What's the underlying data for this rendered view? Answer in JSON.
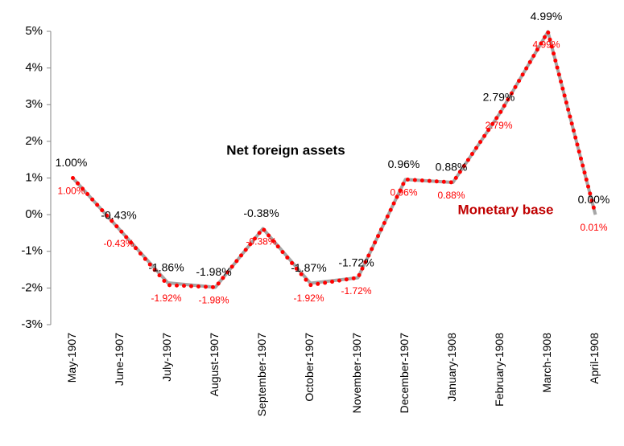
{
  "chart_data": {
    "type": "line",
    "categories": [
      "May-1907",
      "June-1907",
      "July-1907",
      "August-1907",
      "September-1907",
      "October-1907",
      "November-1907",
      "December-1907",
      "January-1908",
      "February-1908",
      "March-1908",
      "April-1908"
    ],
    "series": [
      {
        "name": "Net foreign assets",
        "color": "#a6a6a6",
        "values": [
          1.0,
          -0.43,
          -1.86,
          -1.98,
          -0.38,
          -1.87,
          -1.72,
          0.96,
          0.88,
          2.79,
          4.99,
          0.0
        ],
        "value_labels": [
          "1.00%",
          "-0.43%",
          "-1.86%",
          "-1.98%",
          "-0.38%",
          "-1.87%",
          "-1.72%",
          "0.96%",
          "0.88%",
          "2.79%",
          "4.99%",
          "0.00%"
        ]
      },
      {
        "name": "Monetary base",
        "color": "#ff0000",
        "values": [
          1.0,
          -0.43,
          -1.92,
          -1.98,
          -0.38,
          -1.92,
          -1.72,
          0.96,
          0.88,
          2.79,
          4.99,
          0.01
        ],
        "value_labels": [
          "1.00%",
          "-0.43%",
          "-1.92%",
          "-1.98%",
          "-0.38%",
          "-1.92%",
          "-1.72%",
          "0.96%",
          "0.88%",
          "2.79%",
          "4.99%",
          "0.01%"
        ]
      }
    ],
    "ylim": [
      -3,
      5
    ],
    "yticks": [
      {
        "value": -3,
        "label": "-3%"
      },
      {
        "value": -2,
        "label": "-2%"
      },
      {
        "value": -1,
        "label": "-1%"
      },
      {
        "value": 0,
        "label": "0%"
      },
      {
        "value": 1,
        "label": "1%"
      },
      {
        "value": 2,
        "label": "2%"
      },
      {
        "value": 3,
        "label": "3%"
      },
      {
        "value": 4,
        "label": "4%"
      },
      {
        "value": 5,
        "label": "5%"
      }
    ],
    "grid": false
  }
}
